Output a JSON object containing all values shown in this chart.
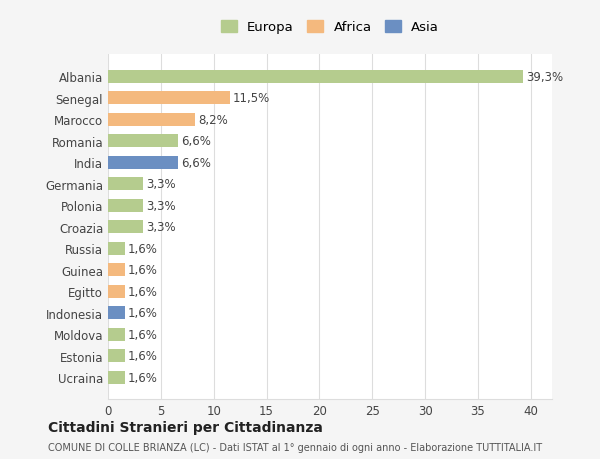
{
  "countries": [
    "Albania",
    "Senegal",
    "Marocco",
    "Romania",
    "India",
    "Germania",
    "Polonia",
    "Croazia",
    "Russia",
    "Guinea",
    "Egitto",
    "Indonesia",
    "Moldova",
    "Estonia",
    "Ucraina"
  ],
  "values": [
    39.3,
    11.5,
    8.2,
    6.6,
    6.6,
    3.3,
    3.3,
    3.3,
    1.6,
    1.6,
    1.6,
    1.6,
    1.6,
    1.6,
    1.6
  ],
  "labels": [
    "39,3%",
    "11,5%",
    "8,2%",
    "6,6%",
    "6,6%",
    "3,3%",
    "3,3%",
    "3,3%",
    "1,6%",
    "1,6%",
    "1,6%",
    "1,6%",
    "1,6%",
    "1,6%",
    "1,6%"
  ],
  "continents": [
    "Europa",
    "Africa",
    "Africa",
    "Europa",
    "Asia",
    "Europa",
    "Europa",
    "Europa",
    "Europa",
    "Africa",
    "Africa",
    "Asia",
    "Europa",
    "Europa",
    "Europa"
  ],
  "colors": {
    "Europa": "#b5cc8e",
    "Africa": "#f4b97e",
    "Asia": "#6b8fc2"
  },
  "legend_colors": {
    "Europa": "#b5cc8e",
    "Africa": "#f4b97e",
    "Asia": "#6b8fc2"
  },
  "xlim": [
    0,
    42
  ],
  "xticks": [
    0,
    5,
    10,
    15,
    20,
    25,
    30,
    35,
    40
  ],
  "title": "Cittadini Stranieri per Cittadinanza",
  "subtitle": "COMUNE DI COLLE BRIANZA (LC) - Dati ISTAT al 1° gennaio di ogni anno - Elaborazione TUTTITALIA.IT",
  "background_color": "#f5f5f5",
  "plot_background": "#ffffff",
  "grid_color": "#dddddd",
  "label_fontsize": 8.5,
  "tick_fontsize": 8.5
}
